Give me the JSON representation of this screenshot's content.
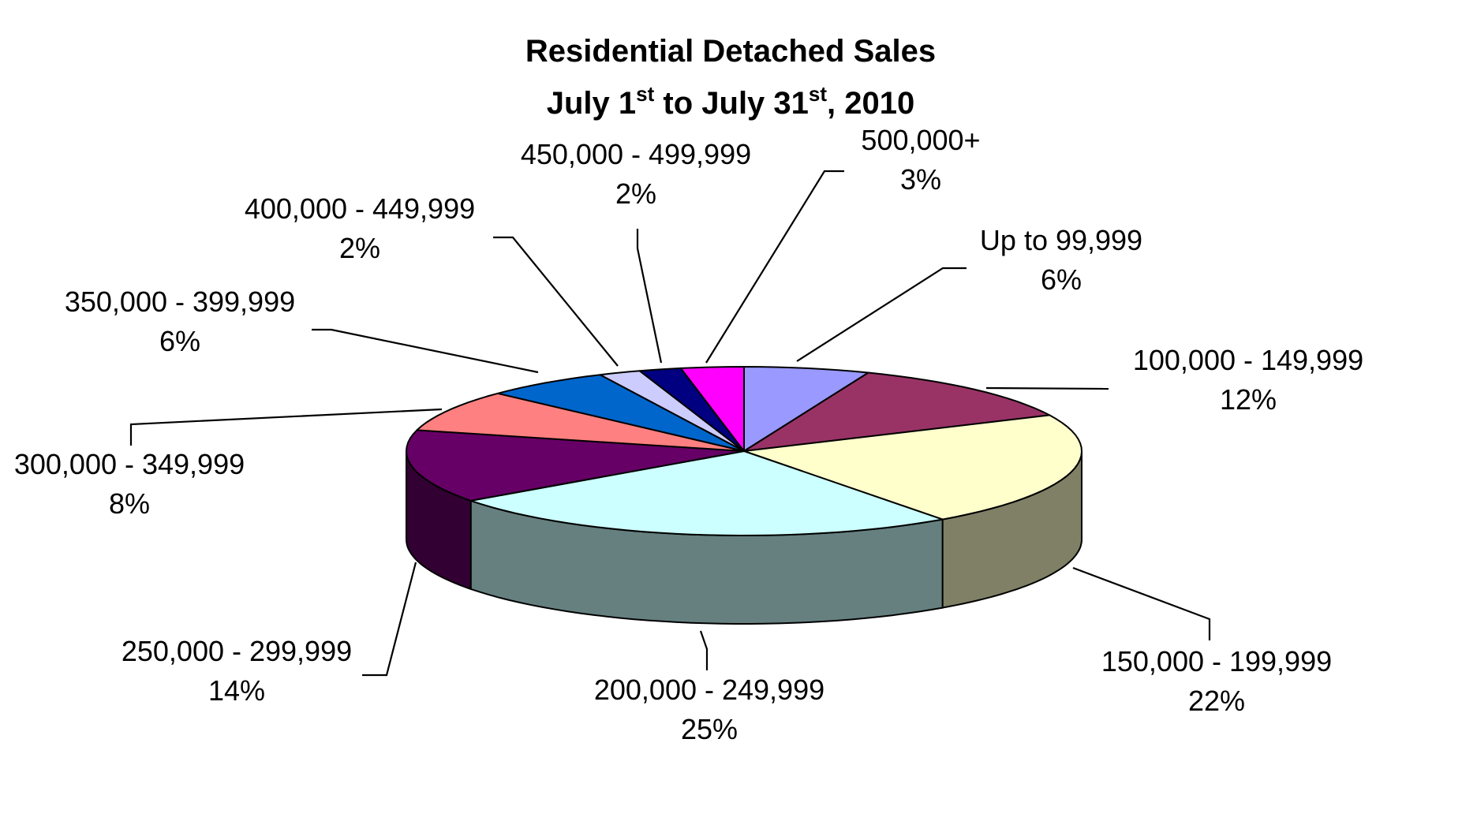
{
  "chart_data": {
    "type": "pie",
    "title_line1": "Residential Detached Sales",
    "title_line2": {
      "part1": "July 1",
      "sup1": "st",
      "part2": " to July 31",
      "sup2": "st",
      "part3": ", 2010"
    },
    "slices": [
      {
        "label": "Up to 99,999",
        "value": 6,
        "display": "6%",
        "color": "#9999ff"
      },
      {
        "label": "100,000 - 149,999",
        "value": 12,
        "display": "12%",
        "color": "#993366"
      },
      {
        "label": "150,000 - 199,999",
        "value": 22,
        "display": "22%",
        "color": "#ffffcc"
      },
      {
        "label": "200,000 - 249,999",
        "value": 25,
        "display": "25%",
        "color": "#ccffff"
      },
      {
        "label": "250,000 - 299,999",
        "value": 14,
        "display": "14%",
        "color": "#660066"
      },
      {
        "label": "300,000 - 349,999",
        "value": 8,
        "display": "8%",
        "color": "#ff8080"
      },
      {
        "label": "350,000 - 399,999",
        "value": 6,
        "display": "6%",
        "color": "#0066cc"
      },
      {
        "label": "400,000 - 449,999",
        "value": 2,
        "display": "2%",
        "color": "#ccccff"
      },
      {
        "label": "450,000 - 499,999",
        "value": 2,
        "display": "2%",
        "color": "#000080"
      },
      {
        "label": "500,000+",
        "value": 3,
        "display": "3%",
        "color": "#ff00ff"
      }
    ]
  }
}
